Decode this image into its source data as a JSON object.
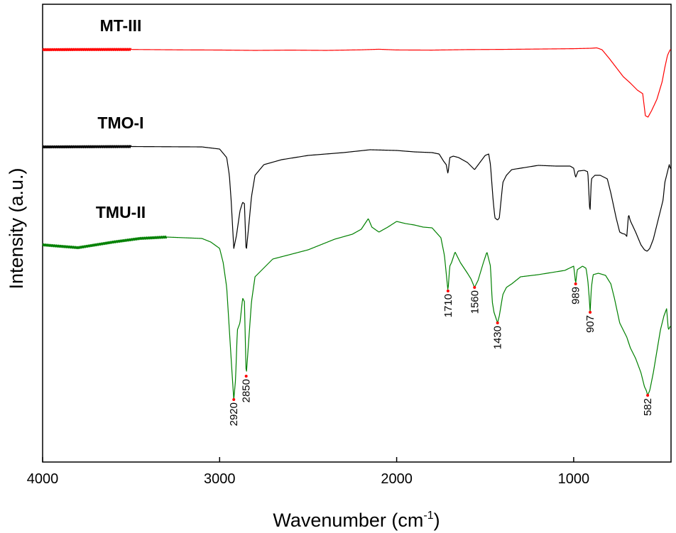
{
  "chart_data": {
    "type": "line",
    "title": "",
    "xlabel": "Wavenumber (cm",
    "xlabel_sup": "-1",
    "xlabel_close": ")",
    "ylabel": "Intensity (a.u.)",
    "xlim": [
      4000,
      450
    ],
    "x_reversed": true,
    "y_ticks_shown": false,
    "grid": false,
    "x_ticks": [
      {
        "value": 4000,
        "label": "4000"
      },
      {
        "value": 3000,
        "label": "3000"
      },
      {
        "value": 2000,
        "label": "2000"
      },
      {
        "value": 1000,
        "label": "1000"
      }
    ],
    "series": [
      {
        "name": "MT-III",
        "color": "#ff0000",
        "noise_region": [
          4000,
          3500
        ],
        "points": [
          [
            4000,
            0.0
          ],
          [
            3800,
            0.2
          ],
          [
            3500,
            0.3
          ],
          [
            3200,
            -0.3
          ],
          [
            3000,
            -0.5
          ],
          [
            2800,
            -1.0
          ],
          [
            2600,
            -0.6
          ],
          [
            2400,
            -1.0
          ],
          [
            2200,
            -0.2
          ],
          [
            2100,
            0.6
          ],
          [
            2000,
            -0.4
          ],
          [
            1800,
            -0.6
          ],
          [
            1600,
            0.1
          ],
          [
            1400,
            0.4
          ],
          [
            1200,
            0.9
          ],
          [
            1000,
            1.4
          ],
          [
            900,
            2.0
          ],
          [
            870,
            2.6
          ],
          [
            840,
            0.0
          ],
          [
            800,
            -12
          ],
          [
            760,
            -25
          ],
          [
            720,
            -38
          ],
          [
            680,
            -47
          ],
          [
            640,
            -57
          ],
          [
            610,
            -62
          ],
          [
            595,
            -93
          ],
          [
            580,
            -95
          ],
          [
            560,
            -86
          ],
          [
            530,
            -70
          ],
          [
            500,
            -45
          ],
          [
            485,
            -25
          ],
          [
            470,
            -8
          ],
          [
            455,
            0
          ]
        ]
      },
      {
        "name": "TMO-I",
        "color": "#000000",
        "noise_region": [
          4000,
          3500
        ],
        "points": [
          [
            4000,
            0.0
          ],
          [
            3500,
            0.5
          ],
          [
            3100,
            0.0
          ],
          [
            3000,
            -3
          ],
          [
            2960,
            -15
          ],
          [
            2945,
            -40
          ],
          [
            2935,
            -75
          ],
          [
            2920,
            -143
          ],
          [
            2905,
            -125
          ],
          [
            2885,
            -90
          ],
          [
            2870,
            -78
          ],
          [
            2860,
            -80
          ],
          [
            2850,
            -148
          ],
          [
            2835,
            -110
          ],
          [
            2820,
            -70
          ],
          [
            2800,
            -40
          ],
          [
            2750,
            -25
          ],
          [
            2650,
            -18
          ],
          [
            2500,
            -12
          ],
          [
            2300,
            -8
          ],
          [
            2150,
            -4
          ],
          [
            2000,
            -5
          ],
          [
            1900,
            -7
          ],
          [
            1800,
            -8
          ],
          [
            1760,
            -10
          ],
          [
            1735,
            -20
          ],
          [
            1720,
            -25
          ],
          [
            1710,
            -38
          ],
          [
            1700,
            -15
          ],
          [
            1680,
            -13
          ],
          [
            1650,
            -15
          ],
          [
            1600,
            -22
          ],
          [
            1560,
            -32
          ],
          [
            1530,
            -22
          ],
          [
            1500,
            -12
          ],
          [
            1480,
            -10
          ],
          [
            1470,
            -25
          ],
          [
            1455,
            -75
          ],
          [
            1445,
            -100
          ],
          [
            1430,
            -103
          ],
          [
            1420,
            -100
          ],
          [
            1400,
            -50
          ],
          [
            1380,
            -40
          ],
          [
            1350,
            -32
          ],
          [
            1300,
            -30
          ],
          [
            1250,
            -28
          ],
          [
            1200,
            -26
          ],
          [
            1100,
            -27
          ],
          [
            1020,
            -27
          ],
          [
            1000,
            -30
          ],
          [
            989,
            -43
          ],
          [
            975,
            -34
          ],
          [
            940,
            -33
          ],
          [
            920,
            -35
          ],
          [
            910,
            -85
          ],
          [
            907,
            -88
          ],
          [
            900,
            -45
          ],
          [
            880,
            -40
          ],
          [
            850,
            -40
          ],
          [
            810,
            -45
          ],
          [
            790,
            -65
          ],
          [
            760,
            -100
          ],
          [
            740,
            -120
          ],
          [
            725,
            -122
          ],
          [
            710,
            -123
          ],
          [
            700,
            -126
          ],
          [
            690,
            -95
          ],
          [
            680,
            -104
          ],
          [
            650,
            -120
          ],
          [
            620,
            -138
          ],
          [
            600,
            -145
          ],
          [
            585,
            -147
          ],
          [
            570,
            -143
          ],
          [
            550,
            -130
          ],
          [
            520,
            -100
          ],
          [
            495,
            -75
          ],
          [
            485,
            -50
          ],
          [
            475,
            -40
          ],
          [
            460,
            -25
          ],
          [
            455,
            -30
          ]
        ]
      },
      {
        "name": "TMU-II",
        "color": "#008000",
        "noise_region": [
          4000,
          3300
        ],
        "points": [
          [
            4000,
            0.0
          ],
          [
            3800,
            -4
          ],
          [
            3600,
            4
          ],
          [
            3450,
            9
          ],
          [
            3300,
            11
          ],
          [
            3100,
            9
          ],
          [
            3050,
            4
          ],
          [
            3000,
            -5
          ],
          [
            2980,
            -25
          ],
          [
            2960,
            -60
          ],
          [
            2945,
            -120
          ],
          [
            2930,
            -180
          ],
          [
            2920,
            -218
          ],
          [
            2910,
            -190
          ],
          [
            2900,
            -120
          ],
          [
            2885,
            -110
          ],
          [
            2870,
            -75
          ],
          [
            2860,
            -80
          ],
          [
            2850,
            -185
          ],
          [
            2840,
            -150
          ],
          [
            2820,
            -80
          ],
          [
            2800,
            -45
          ],
          [
            2700,
            -20
          ],
          [
            2500,
            -7
          ],
          [
            2350,
            8
          ],
          [
            2250,
            15
          ],
          [
            2200,
            22
          ],
          [
            2160,
            37
          ],
          [
            2140,
            25
          ],
          [
            2100,
            18
          ],
          [
            2050,
            25
          ],
          [
            2000,
            33
          ],
          [
            1950,
            30
          ],
          [
            1900,
            28
          ],
          [
            1850,
            25
          ],
          [
            1800,
            24
          ],
          [
            1750,
            10
          ],
          [
            1730,
            -15
          ],
          [
            1720,
            -40
          ],
          [
            1710,
            -65
          ],
          [
            1700,
            -30
          ],
          [
            1690,
            -25
          ],
          [
            1670,
            -10
          ],
          [
            1640,
            -25
          ],
          [
            1600,
            -40
          ],
          [
            1580,
            -48
          ],
          [
            1560,
            -60
          ],
          [
            1540,
            -50
          ],
          [
            1510,
            -25
          ],
          [
            1490,
            -10
          ],
          [
            1480,
            -20
          ],
          [
            1470,
            -30
          ],
          [
            1460,
            -80
          ],
          [
            1450,
            -95
          ],
          [
            1430,
            -110
          ],
          [
            1420,
            -100
          ],
          [
            1400,
            -70
          ],
          [
            1380,
            -60
          ],
          [
            1350,
            -55
          ],
          [
            1300,
            -45
          ],
          [
            1200,
            -42
          ],
          [
            1100,
            -38
          ],
          [
            1050,
            -36
          ],
          [
            1000,
            -30
          ],
          [
            995,
            -40
          ],
          [
            989,
            -55
          ],
          [
            980,
            -35
          ],
          [
            950,
            -30
          ],
          [
            930,
            -33
          ],
          [
            920,
            -50
          ],
          [
            912,
            -75
          ],
          [
            907,
            -95
          ],
          [
            900,
            -60
          ],
          [
            890,
            -42
          ],
          [
            860,
            -40
          ],
          [
            820,
            -43
          ],
          [
            790,
            -55
          ],
          [
            770,
            -75
          ],
          [
            740,
            -110
          ],
          [
            720,
            -120
          ],
          [
            700,
            -130
          ],
          [
            680,
            -145
          ],
          [
            650,
            -160
          ],
          [
            620,
            -180
          ],
          [
            600,
            -200
          ],
          [
            590,
            -205
          ],
          [
            582,
            -212
          ],
          [
            570,
            -205
          ],
          [
            550,
            -180
          ],
          [
            530,
            -150
          ],
          [
            510,
            -120
          ],
          [
            490,
            -100
          ],
          [
            475,
            -90
          ],
          [
            465,
            -120
          ],
          [
            455,
            -115
          ]
        ]
      }
    ],
    "annotations": [
      {
        "label": "2920",
        "x": 2920,
        "series": "TMU-II",
        "color": "#ff0000"
      },
      {
        "label": "2850",
        "x": 2850,
        "series": "TMU-II",
        "color": "#ff0000"
      },
      {
        "label": "1710",
        "x": 1710,
        "series": "TMU-II",
        "color": "#ff0000"
      },
      {
        "label": "1560",
        "x": 1560,
        "series": "TMU-II",
        "color": "#ff0000"
      },
      {
        "label": "1430",
        "x": 1430,
        "series": "TMU-II",
        "color": "#ff0000"
      },
      {
        "label": "989",
        "x": 989,
        "series": "TMU-II",
        "color": "#ff0000"
      },
      {
        "label": "907",
        "x": 907,
        "series": "TMU-II",
        "color": "#ff0000"
      },
      {
        "label": "582",
        "x": 582,
        "series": "TMU-II",
        "color": "#ff0000"
      }
    ]
  }
}
